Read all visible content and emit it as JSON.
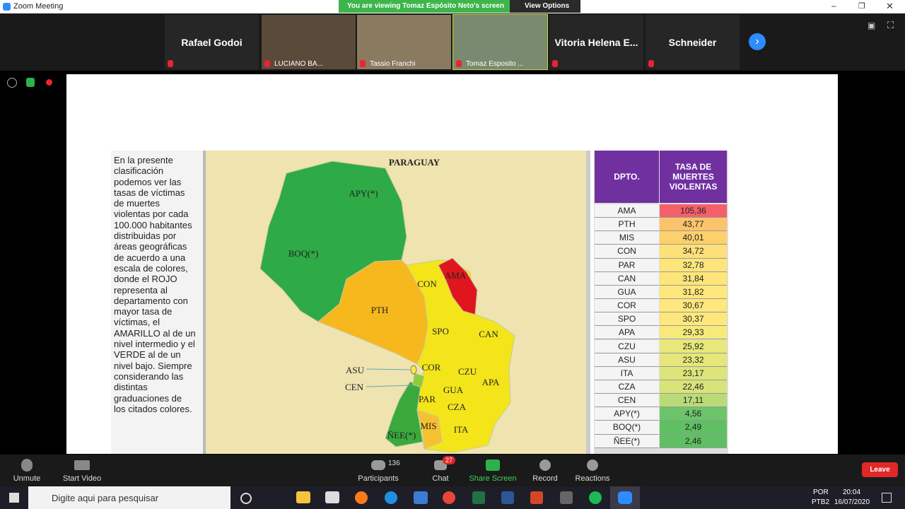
{
  "window": {
    "title": "Zoom Meeting",
    "banner": "You are viewing Tomaz Espósito Neto's screen",
    "view_options": "View Options"
  },
  "participants": [
    "Rafael Godoi",
    "LUCIANO BA...",
    "Tassio Franchi",
    "Tomaz Esposito ...",
    "Vitoria Helena E...",
    "Schneider"
  ],
  "slide": {
    "description": "En la presente clasificación podemos ver las tasas de víctimas de muertes violentas por cada 100.000 habitantes distribuidas por áreas geográficas de acuerdo a una escala de colores, donde el ROJO representa al departamento con mayor tasa de víctimas, el AMARILLO al de un nivel intermedio y el VERDE al de un nivel bajo. Siempre considerando las distintas graduaciones de los citados colores.",
    "map": {
      "title": "PARAGUAY",
      "labels": [
        "APY(*)",
        "BOQ(*)",
        "PTH",
        "CON",
        "AMA",
        "SPO",
        "CAN",
        "ASU",
        "CEN",
        "COR",
        "CZU",
        "APA",
        "GUA",
        "PAR",
        "CZA",
        "MIS",
        "ITA",
        "ÑEE(*)"
      ]
    },
    "table": {
      "headers": [
        "DPTO.",
        "TASA DE MUERTES VIOLENTAS"
      ],
      "rows": [
        [
          "AMA",
          "105,36"
        ],
        [
          "PTH",
          "43,77"
        ],
        [
          "MIS",
          "40,01"
        ],
        [
          "CON",
          "34,72"
        ],
        [
          "PAR",
          "32,78"
        ],
        [
          "CAN",
          "31,84"
        ],
        [
          "GUA",
          "31,82"
        ],
        [
          "COR",
          "30,67"
        ],
        [
          "SPO",
          "30,37"
        ],
        [
          "APA",
          "29,33"
        ],
        [
          "CZU",
          "25,92"
        ],
        [
          "ASU",
          "23,32"
        ],
        [
          "ITA",
          "23,17"
        ],
        [
          "CZA",
          "22,46"
        ],
        [
          "CEN",
          "17,11"
        ],
        [
          "APY(*)",
          "4,56"
        ],
        [
          "BOQ(*)",
          "2,49"
        ],
        [
          "ÑEE(*)",
          "2,46"
        ]
      ],
      "row_colors": [
        "#f4606a",
        "#fbc36b",
        "#fdd06b",
        "#fde07a",
        "#fde57a",
        "#fde57a",
        "#fee77c",
        "#fee77c",
        "#fee77c",
        "#f7e97a",
        "#e8e87a",
        "#e6e67a",
        "#dde57a",
        "#d8e37a",
        "#b9db78",
        "#6cc46a",
        "#5fbf63",
        "#5fbf63"
      ]
    }
  },
  "toolbar": {
    "unmute": "Unmute",
    "start_video": "Start Video",
    "participants": "Participants",
    "participant_count": "136",
    "chat": "Chat",
    "chat_badge": "27",
    "share_screen": "Share Screen",
    "record": "Record",
    "reactions": "Reactions",
    "leave": "Leave"
  },
  "taskbar": {
    "search": "Digite aqui para pesquisar",
    "language": "POR",
    "layout": "PTB2",
    "time": "20:04",
    "date": "16/07/2020"
  }
}
